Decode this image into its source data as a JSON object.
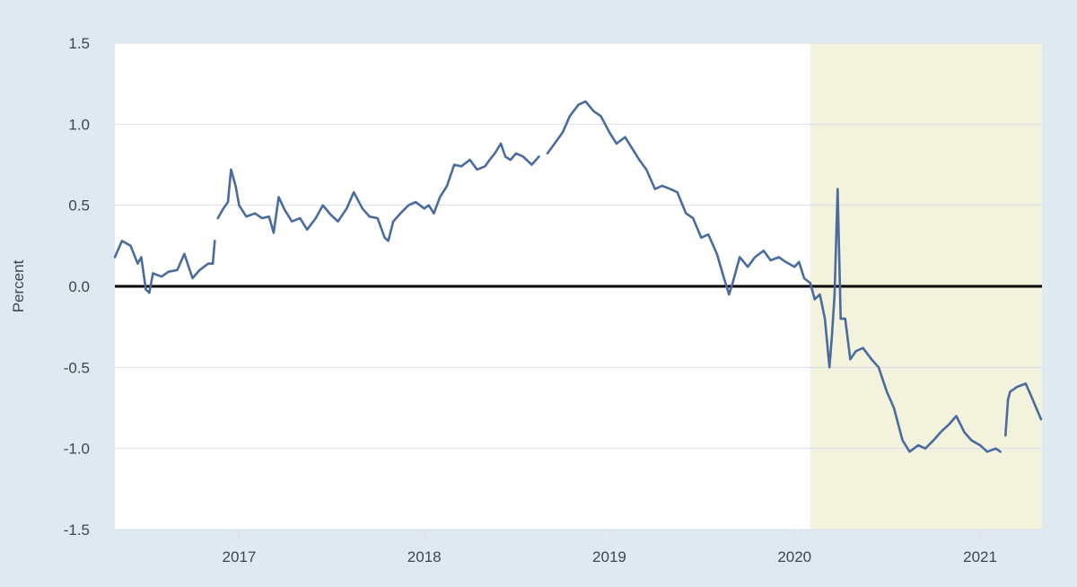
{
  "colors": {
    "page_background": "#e1e9f0",
    "plot_background": "#ffffff",
    "recession_shading": "#f3f2dc",
    "series_line": "#4a6b9e",
    "zero_line": "#000000",
    "grid": "#d8dee8",
    "tick_text": "#3c4650"
  },
  "chart_data": {
    "type": "line",
    "title": "",
    "xlabel": "",
    "ylabel": "Percent",
    "ylim": [
      -1.5,
      1.5
    ],
    "xlim": [
      "2016-05-01",
      "2021-05-03"
    ],
    "y_ticks": [
      "1.5",
      "1.0",
      "0.5",
      "0.0",
      "-0.5",
      "-1.0",
      "-1.5"
    ],
    "x_ticks": [
      "2017",
      "2018",
      "2019",
      "2020",
      "2021"
    ],
    "grid": true,
    "legend": "none",
    "reference_line": {
      "y": 0
    },
    "shaded_period": {
      "start": "2020-02-01",
      "end": "2021-05-03"
    },
    "series": [
      {
        "points": [
          [
            "2016-05-01",
            0.18
          ],
          [
            "2016-05-15",
            0.28
          ],
          [
            "2016-06-01",
            0.25
          ],
          [
            "2016-06-15",
            0.14
          ],
          [
            "2016-06-22",
            0.18
          ],
          [
            "2016-07-01",
            -0.02
          ],
          [
            "2016-07-08",
            -0.04
          ],
          [
            "2016-07-15",
            0.08
          ],
          [
            "2016-08-01",
            0.06
          ],
          [
            "2016-08-15",
            0.09
          ],
          [
            "2016-09-01",
            0.1
          ],
          [
            "2016-09-15",
            0.2
          ],
          [
            "2016-10-01",
            0.05
          ],
          [
            "2016-10-15",
            0.1
          ],
          [
            "2016-11-01",
            0.14
          ],
          [
            "2016-11-10",
            0.14
          ],
          [
            "2016-11-14",
            0.28
          ],
          [
            "2016-11-18",
            null
          ],
          [
            "2016-11-20",
            0.42
          ],
          [
            "2016-12-01",
            0.48
          ],
          [
            "2016-12-10",
            0.52
          ],
          [
            "2016-12-16",
            0.72
          ],
          [
            "2016-12-25",
            0.62
          ],
          [
            "2017-01-01",
            0.5
          ],
          [
            "2017-01-15",
            0.43
          ],
          [
            "2017-02-01",
            0.45
          ],
          [
            "2017-02-15",
            0.42
          ],
          [
            "2017-03-01",
            0.43
          ],
          [
            "2017-03-10",
            0.33
          ],
          [
            "2017-03-20",
            0.55
          ],
          [
            "2017-04-01",
            0.47
          ],
          [
            "2017-04-15",
            0.4
          ],
          [
            "2017-05-01",
            0.42
          ],
          [
            "2017-05-15",
            0.35
          ],
          [
            "2017-06-01",
            0.42
          ],
          [
            "2017-06-15",
            0.5
          ],
          [
            "2017-07-01",
            0.44
          ],
          [
            "2017-07-15",
            0.4
          ],
          [
            "2017-08-01",
            0.48
          ],
          [
            "2017-08-15",
            0.58
          ],
          [
            "2017-09-01",
            0.48
          ],
          [
            "2017-09-15",
            0.43
          ],
          [
            "2017-10-01",
            0.42
          ],
          [
            "2017-10-15",
            0.3
          ],
          [
            "2017-10-22",
            0.28
          ],
          [
            "2017-11-01",
            0.4
          ],
          [
            "2017-11-15",
            0.45
          ],
          [
            "2017-12-01",
            0.5
          ],
          [
            "2017-12-15",
            0.52
          ],
          [
            "2018-01-01",
            0.48
          ],
          [
            "2018-01-10",
            0.5
          ],
          [
            "2018-01-20",
            0.45
          ],
          [
            "2018-02-01",
            0.55
          ],
          [
            "2018-02-15",
            0.62
          ],
          [
            "2018-03-01",
            0.75
          ],
          [
            "2018-03-15",
            0.74
          ],
          [
            "2018-04-01",
            0.78
          ],
          [
            "2018-04-15",
            0.72
          ],
          [
            "2018-05-01",
            0.74
          ],
          [
            "2018-05-10",
            0.78
          ],
          [
            "2018-05-20",
            0.82
          ],
          [
            "2018-06-01",
            0.88
          ],
          [
            "2018-06-10",
            0.8
          ],
          [
            "2018-06-20",
            0.78
          ],
          [
            "2018-07-01",
            0.82
          ],
          [
            "2018-07-15",
            0.8
          ],
          [
            "2018-08-01",
            0.75
          ],
          [
            "2018-08-15",
            0.8
          ],
          [
            "2018-08-20",
            null
          ],
          [
            "2018-09-01",
            0.82
          ],
          [
            "2018-09-15",
            0.88
          ],
          [
            "2018-10-01",
            0.95
          ],
          [
            "2018-10-15",
            1.05
          ],
          [
            "2018-11-01",
            1.12
          ],
          [
            "2018-11-15",
            1.14
          ],
          [
            "2018-12-01",
            1.08
          ],
          [
            "2018-12-15",
            1.05
          ],
          [
            "2019-01-01",
            0.95
          ],
          [
            "2019-01-15",
            0.88
          ],
          [
            "2019-02-01",
            0.92
          ],
          [
            "2019-02-15",
            0.85
          ],
          [
            "2019-03-01",
            0.78
          ],
          [
            "2019-03-15",
            0.72
          ],
          [
            "2019-04-01",
            0.6
          ],
          [
            "2019-04-15",
            0.62
          ],
          [
            "2019-05-01",
            0.6
          ],
          [
            "2019-05-15",
            0.58
          ],
          [
            "2019-06-01",
            0.45
          ],
          [
            "2019-06-15",
            0.42
          ],
          [
            "2019-07-01",
            0.3
          ],
          [
            "2019-07-15",
            0.32
          ],
          [
            "2019-08-01",
            0.2
          ],
          [
            "2019-08-15",
            0.05
          ],
          [
            "2019-08-25",
            -0.05
          ],
          [
            "2019-09-01",
            0.02
          ],
          [
            "2019-09-15",
            0.18
          ],
          [
            "2019-10-01",
            0.12
          ],
          [
            "2019-10-15",
            0.18
          ],
          [
            "2019-11-01",
            0.22
          ],
          [
            "2019-11-15",
            0.16
          ],
          [
            "2019-12-01",
            0.18
          ],
          [
            "2019-12-15",
            0.15
          ],
          [
            "2020-01-01",
            0.12
          ],
          [
            "2020-01-10",
            0.15
          ],
          [
            "2020-01-20",
            0.05
          ],
          [
            "2020-02-01",
            0.02
          ],
          [
            "2020-02-10",
            -0.08
          ],
          [
            "2020-02-20",
            -0.05
          ],
          [
            "2020-03-01",
            -0.2
          ],
          [
            "2020-03-10",
            -0.5
          ],
          [
            "2020-03-15",
            -0.3
          ],
          [
            "2020-03-20",
            -0.05
          ],
          [
            "2020-03-26",
            0.6
          ],
          [
            "2020-04-01",
            -0.2
          ],
          [
            "2020-04-10",
            -0.2
          ],
          [
            "2020-04-20",
            -0.45
          ],
          [
            "2020-05-01",
            -0.4
          ],
          [
            "2020-05-15",
            -0.38
          ],
          [
            "2020-06-01",
            -0.45
          ],
          [
            "2020-06-15",
            -0.5
          ],
          [
            "2020-07-01",
            -0.65
          ],
          [
            "2020-07-15",
            -0.75
          ],
          [
            "2020-08-01",
            -0.95
          ],
          [
            "2020-08-15",
            -1.02
          ],
          [
            "2020-09-01",
            -0.98
          ],
          [
            "2020-09-15",
            -1.0
          ],
          [
            "2020-10-01",
            -0.95
          ],
          [
            "2020-10-15",
            -0.9
          ],
          [
            "2020-11-01",
            -0.85
          ],
          [
            "2020-11-15",
            -0.8
          ],
          [
            "2020-12-01",
            -0.9
          ],
          [
            "2020-12-15",
            -0.95
          ],
          [
            "2021-01-01",
            -0.98
          ],
          [
            "2021-01-15",
            -1.02
          ],
          [
            "2021-02-01",
            -1.0
          ],
          [
            "2021-02-10",
            -1.02
          ],
          [
            "2021-02-15",
            null
          ],
          [
            "2021-02-20",
            -0.92
          ],
          [
            "2021-02-25",
            -0.7
          ],
          [
            "2021-03-01",
            -0.65
          ],
          [
            "2021-03-15",
            -0.62
          ],
          [
            "2021-04-01",
            -0.6
          ],
          [
            "2021-04-15",
            -0.7
          ],
          [
            "2021-05-01",
            -0.82
          ]
        ]
      }
    ]
  }
}
